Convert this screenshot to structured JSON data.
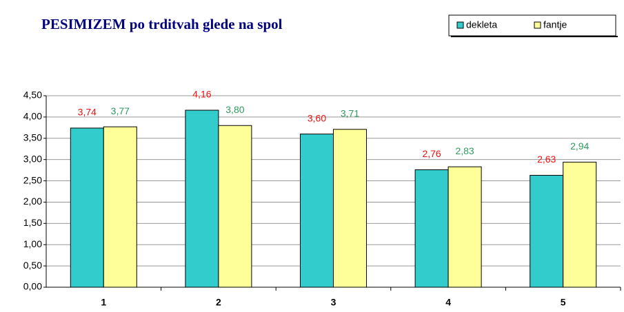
{
  "chart_data": {
    "type": "bar",
    "title": "PESIMIZEM po trditvah glede na spol",
    "categories": [
      "1",
      "2",
      "3",
      "4",
      "5"
    ],
    "series": [
      {
        "name": "dekleta",
        "color": "#33cccc",
        "label_color": "#ee1111",
        "values": [
          3.74,
          4.16,
          3.6,
          2.76,
          2.63
        ],
        "value_labels": [
          "3,74",
          "4,16",
          "3,60",
          "2,76",
          "2,63"
        ]
      },
      {
        "name": "fantje",
        "color": "#ffff99",
        "label_color": "#2e9a5e",
        "values": [
          3.77,
          3.8,
          3.71,
          2.83,
          2.94
        ],
        "value_labels": [
          "3,77",
          "3,80",
          "3,71",
          "2,83",
          "2,94"
        ]
      }
    ],
    "ylim": [
      0,
      4.5
    ],
    "yticks": [
      {
        "value": 0,
        "label": "0,00"
      },
      {
        "value": 0.5,
        "label": "0,50"
      },
      {
        "value": 1,
        "label": "1,00"
      },
      {
        "value": 1.5,
        "label": "1,50"
      },
      {
        "value": 2,
        "label": "2,00"
      },
      {
        "value": 2.5,
        "label": "2,50"
      },
      {
        "value": 3,
        "label": "3,00"
      },
      {
        "value": 3.5,
        "label": "3,50"
      },
      {
        "value": 4,
        "label": "4,00"
      },
      {
        "value": 4.5,
        "label": "4,50"
      }
    ],
    "grid": true,
    "legend": "top-right"
  }
}
